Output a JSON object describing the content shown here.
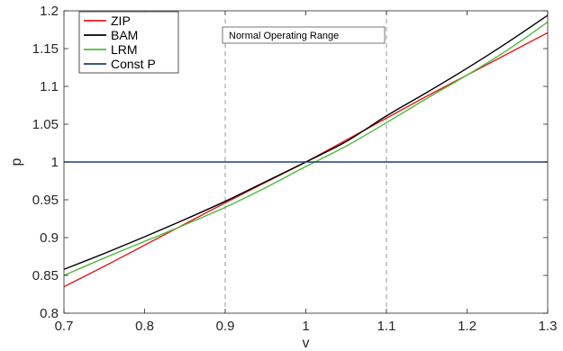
{
  "chart_data": {
    "type": "line",
    "title": "",
    "xlabel": "v",
    "ylabel": "p",
    "xlim": [
      0.7,
      1.3
    ],
    "ylim": [
      0.8,
      1.2
    ],
    "xticks": [
      0.7,
      0.8,
      0.9,
      1.0,
      1.1,
      1.2,
      1.3
    ],
    "xtick_labels": [
      "0.7",
      "0.8",
      "0.9",
      "1",
      "1.1",
      "1.2",
      "1.3"
    ],
    "yticks": [
      0.8,
      0.85,
      0.9,
      0.95,
      1.0,
      1.05,
      1.1,
      1.15,
      1.2
    ],
    "ytick_labels": [
      "0.8",
      "0.85",
      "0.9",
      "0.95",
      "1",
      "1.05",
      "1.1",
      "1.15",
      "1.2"
    ],
    "grid": false,
    "legend_position": "top-left",
    "x": [
      0.7,
      0.75,
      0.8,
      0.85,
      0.9,
      0.95,
      1.0,
      1.05,
      1.1,
      1.15,
      1.2,
      1.25,
      1.3
    ],
    "series": [
      {
        "name": "ZIP",
        "color": "#e41a1c",
        "values": [
          0.835,
          0.862,
          0.89,
          0.918,
          0.946,
          0.973,
          1.0,
          1.029,
          1.058,
          1.087,
          1.115,
          1.143,
          1.171
        ]
      },
      {
        "name": "BAM",
        "color": "#000000",
        "values": [
          0.858,
          0.879,
          0.901,
          0.924,
          0.948,
          0.974,
          1.0,
          1.027,
          1.061,
          1.092,
          1.124,
          1.158,
          1.194
        ]
      },
      {
        "name": "LRM",
        "color": "#4dbb3a",
        "values": [
          0.85,
          0.873,
          0.895,
          0.917,
          0.94,
          0.966,
          0.994,
          1.021,
          1.052,
          1.084,
          1.115,
          1.148,
          1.185
        ]
      },
      {
        "name": "Const P",
        "color": "#1f3d7a",
        "values": [
          1.0,
          1.0,
          1.0,
          1.0,
          1.0,
          1.0,
          1.0,
          1.0,
          1.0,
          1.0,
          1.0,
          1.0,
          1.0
        ]
      }
    ],
    "annotations": [
      {
        "text": "Normal Operating Range",
        "x_range": [
          0.9,
          1.1
        ]
      }
    ]
  }
}
